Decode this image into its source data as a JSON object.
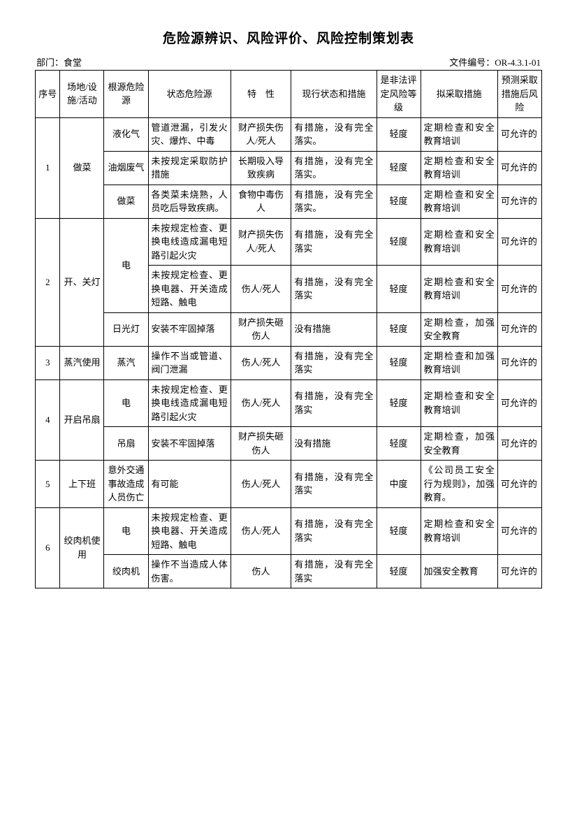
{
  "title": "危险源辨识、风险评价、风险控制策划表",
  "meta": {
    "dept_label": "部门：",
    "dept_value": "食堂",
    "docno_label": "文件编号：",
    "docno_value": "OR-4.3.1-01"
  },
  "headers": {
    "seq": "序号",
    "location": "场地/设施/活动",
    "root": "根源危险源",
    "state": "状态危险源",
    "char": "特　性",
    "current": "现行状态和措施",
    "risk": "是非法评定风险等级",
    "action": "拟采取措施",
    "post": "预测采取措施后风险"
  },
  "groups": [
    {
      "seq": "1",
      "location": "做菜",
      "rows": [
        {
          "root": "液化气",
          "state": "管道泄漏，引发火灾、爆炸、中毒",
          "char": "财产损失伤人/死人",
          "current": "有措施，没有完全落实。",
          "risk": "轻度",
          "action": "定期检查和安全教育培训",
          "post": "可允许的"
        },
        {
          "root": "油烟废气",
          "state": "未按规定采取防护措施",
          "char": "长期吸入导致疾病",
          "current": "有措施，没有完全落实。",
          "risk": "轻度",
          "action": "定期检查和安全教育培训",
          "post": "可允许的"
        },
        {
          "root": "做菜",
          "state": "各类菜未烧熟，人员吃后导致疾病。",
          "char": "食物中毒伤人",
          "current": "有措施，没有完全落实。",
          "risk": "轻度",
          "action": "定期检查和安全教育培训",
          "post": "可允许的"
        }
      ]
    },
    {
      "seq": "2",
      "location": "开、关灯",
      "subgroups": [
        {
          "root": "电",
          "rows": [
            {
              "state": "未按规定检查、更换电线造成漏电短路引起火灾",
              "char": "财产损失伤人/死人",
              "current": "有措施，没有完全落实",
              "risk": "轻度",
              "action": "定期检查和安全教育培训",
              "post": "可允许的"
            },
            {
              "state": "未按规定检查、更换电器、开关造成短路、触电",
              "char": "伤人/死人",
              "current": "有措施，没有完全落实",
              "risk": "轻度",
              "action": "定期检查和安全教育培训",
              "post": "可允许的"
            }
          ]
        },
        {
          "root": "日光灯",
          "rows": [
            {
              "state": "安装不牢固掉落",
              "char": "财产损失砸伤人",
              "current": "没有措施",
              "risk": "轻度",
              "action": "定期检查，加强安全教育",
              "post": "可允许的"
            }
          ]
        }
      ]
    },
    {
      "seq": "3",
      "location": "蒸汽使用",
      "rows": [
        {
          "root": "蒸汽",
          "state": "操作不当或管道、阀门泄漏",
          "char": "伤人/死人",
          "current": "有措施，没有完全落实",
          "risk": "轻度",
          "action": "定期检查和加强教育培训",
          "post": "可允许的"
        }
      ]
    },
    {
      "seq": "4",
      "location": "开启吊扇",
      "rows": [
        {
          "root": "电",
          "state": "未按规定检查、更换电线造成漏电短路引起火灾",
          "char": "伤人/死人",
          "current": "有措施，没有完全落实",
          "risk": "轻度",
          "action": "定期检查和安全教育培训",
          "post": "可允许的"
        },
        {
          "root": "吊扇",
          "state": "安装不牢固掉落",
          "char": "财产损失砸伤人",
          "current": "没有措施",
          "risk": "轻度",
          "action": "定期检查，加强安全教育",
          "post": "可允许的"
        }
      ]
    },
    {
      "seq": "5",
      "location": "上下班",
      "rows": [
        {
          "root": "意外交通事故造成人员伤亡",
          "state": "有可能",
          "char": "伤人/死人",
          "current": "有措施，没有完全落实",
          "risk": "中度",
          "action": "《公司员工安全行为规则》，加强教育。",
          "post": "可允许的"
        }
      ]
    },
    {
      "seq": "6",
      "location": "绞肉机使用",
      "rows": [
        {
          "root": "电",
          "state": "未按规定检查、更换电器、开关造成短路、触电",
          "char": "伤人/死人",
          "current": "有措施，没有完全落实",
          "risk": "轻度",
          "action": "定期检查和安全教育培训",
          "post": "可允许的"
        },
        {
          "root": "绞肉机",
          "state": "操作不当造成人体伤害。",
          "char": "伤人",
          "current": "有措施，没有完全落实",
          "risk": "轻度",
          "action": "加强安全教育",
          "post": "可允许的"
        }
      ]
    }
  ]
}
